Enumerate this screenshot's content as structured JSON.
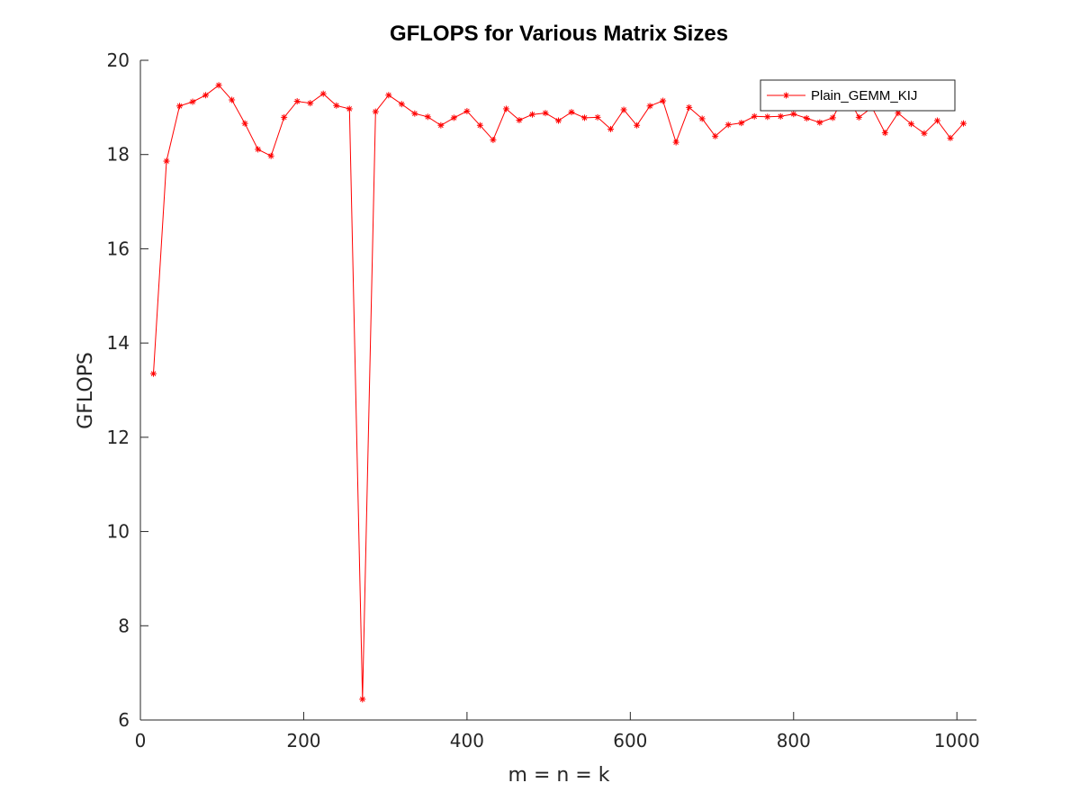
{
  "chart_data": {
    "type": "line",
    "title": "GFLOPS for Various Matrix Sizes",
    "xlabel": "m = n = k",
    "ylabel": "GFLOPS",
    "xlim": [
      0,
      1024
    ],
    "ylim": [
      6,
      20
    ],
    "xticks": [
      0,
      200,
      400,
      600,
      800,
      1000
    ],
    "yticks": [
      6,
      8,
      10,
      12,
      14,
      16,
      18,
      20
    ],
    "grid": false,
    "legend_position": "top-right",
    "series": [
      {
        "name": "Plain_GEMM_KIJ",
        "color": "#ff0000",
        "marker": "asterisk",
        "x": [
          16,
          32,
          48,
          64,
          80,
          96,
          112,
          128,
          144,
          160,
          176,
          192,
          208,
          224,
          240,
          256,
          272,
          288,
          304,
          320,
          336,
          352,
          368,
          384,
          400,
          416,
          432,
          448,
          464,
          480,
          496,
          512,
          528,
          544,
          560,
          576,
          592,
          608,
          624,
          640,
          656,
          672,
          688,
          704,
          720,
          736,
          752,
          768,
          784,
          800,
          816,
          832,
          848,
          864,
          880,
          896,
          912,
          928,
          944,
          960,
          976,
          992,
          1008
        ],
        "y": [
          13.35,
          17.86,
          19.03,
          19.12,
          19.26,
          19.47,
          19.16,
          18.66,
          18.11,
          17.97,
          18.79,
          19.13,
          19.09,
          19.29,
          19.04,
          18.97,
          6.44,
          18.91,
          19.26,
          19.07,
          18.87,
          18.8,
          18.62,
          18.78,
          18.92,
          18.62,
          18.31,
          18.97,
          18.73,
          18.85,
          18.88,
          18.72,
          18.9,
          18.78,
          18.79,
          18.54,
          18.95,
          18.62,
          19.03,
          19.14,
          18.26,
          19.0,
          18.76,
          18.39,
          18.63,
          18.67,
          18.81,
          18.8,
          18.81,
          18.86,
          18.77,
          18.68,
          18.78,
          19.3,
          18.79,
          19.0,
          18.46,
          18.88,
          18.65,
          18.45,
          18.72,
          18.35,
          18.66
        ]
      }
    ]
  }
}
